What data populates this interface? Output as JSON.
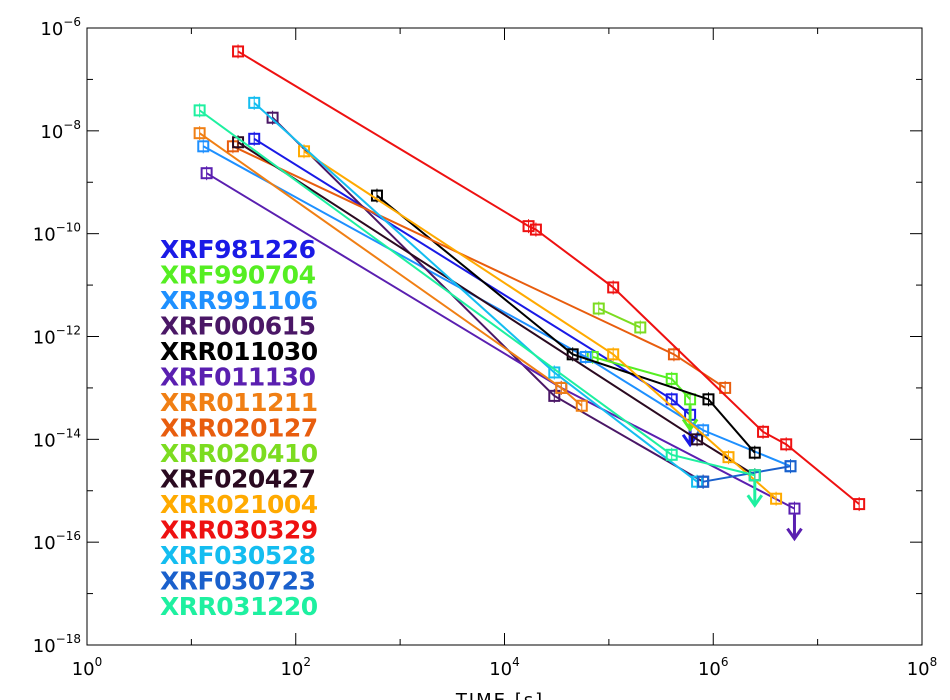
{
  "chart_data": {
    "type": "line",
    "xlabel": "TIME [s]",
    "ylabel": "",
    "x_scale": "log",
    "y_scale": "log",
    "xlim": [
      1,
      100000000
    ],
    "ylim": [
      1e-18,
      1e-06
    ],
    "x_ticks": [
      {
        "value": 1,
        "base": "10",
        "exp": "0"
      },
      {
        "value": 100,
        "base": "10",
        "exp": "2"
      },
      {
        "value": 10000,
        "base": "10",
        "exp": "4"
      },
      {
        "value": 1000000,
        "base": "10",
        "exp": "6"
      },
      {
        "value": 100000000,
        "base": "10",
        "exp": "8"
      }
    ],
    "y_ticks": [
      {
        "value": 1e-06,
        "base": "10",
        "exp": "−6"
      },
      {
        "value": 1e-08,
        "base": "10",
        "exp": "−8"
      },
      {
        "value": 1e-10,
        "base": "10",
        "exp": "−10"
      },
      {
        "value": 1e-12,
        "base": "10",
        "exp": "−12"
      },
      {
        "value": 1e-14,
        "base": "10",
        "exp": "−14"
      },
      {
        "value": 1e-16,
        "base": "10",
        "exp": "−16"
      },
      {
        "value": 1e-18,
        "base": "10",
        "exp": "−18"
      }
    ],
    "legend_position": "left",
    "series": [
      {
        "name": "XRF981226",
        "color": "#1a1ae6",
        "x": [
          40,
          400000,
          600000
        ],
        "y": [
          7e-09,
          6e-14,
          3e-14
        ],
        "upper_limit_last": true
      },
      {
        "name": "XRF990704",
        "color": "#55ee22",
        "x": [
          70000,
          400000,
          600000
        ],
        "y": [
          4e-13,
          1.5e-13,
          6e-14
        ],
        "upper_limit_last": true
      },
      {
        "name": "XRR991106",
        "color": "#1e90ff",
        "x": [
          13,
          60000,
          800000,
          5500000
        ],
        "y": [
          5e-09,
          4e-13,
          1.5e-14,
          3e-15
        ],
        "upper_limit_last": false
      },
      {
        "name": "XRF000615",
        "color": "#4a1766",
        "x": [
          60,
          30000,
          800000
        ],
        "y": [
          1.8e-08,
          7e-14,
          1.5e-15
        ],
        "upper_limit_last": false
      },
      {
        "name": "XRR011030",
        "color": "#000000",
        "x": [
          600,
          45000,
          900000,
          2500000
        ],
        "y": [
          5.5e-10,
          4.5e-13,
          6e-14,
          5.5e-15
        ],
        "upper_limit_last": false
      },
      {
        "name": "XRF011130",
        "color": "#5a1fb0",
        "x": [
          14,
          35000,
          6000000
        ],
        "y": [
          1.5e-09,
          1e-13,
          4.5e-16
        ],
        "upper_limit_last": true
      },
      {
        "name": "XRR011211",
        "color": "#f07f14",
        "x": [
          12,
          35000,
          55000
        ],
        "y": [
          9e-09,
          1e-13,
          4.5e-14
        ],
        "upper_limit_last": false
      },
      {
        "name": "XRR020127",
        "color": "#e85d0e",
        "x": [
          25,
          420000,
          1300000
        ],
        "y": [
          5e-09,
          4.5e-13,
          1e-13
        ],
        "upper_limit_last": false
      },
      {
        "name": "XRR020410",
        "color": "#7cdc20",
        "x": [
          80000,
          200000
        ],
        "y": [
          3.5e-12,
          1.5e-12
        ],
        "upper_limit_last": false
      },
      {
        "name": "XRF020427",
        "color": "#2a0a20",
        "x": [
          28,
          700000,
          2500000
        ],
        "y": [
          6e-09,
          1e-14,
          2e-15
        ],
        "upper_limit_last": false
      },
      {
        "name": "XRR021004",
        "color": "#ffaa00",
        "x": [
          120,
          110000,
          1400000,
          4000000
        ],
        "y": [
          4e-09,
          4.5e-13,
          4.5e-15,
          7e-16
        ],
        "upper_limit_last": false
      },
      {
        "name": "XRR030329",
        "color": "#ee1111",
        "x": [
          28,
          17000,
          20000,
          110000,
          3000000,
          5000000,
          25000000
        ],
        "y": [
          3.5e-07,
          1.4e-10,
          1.2e-10,
          9e-12,
          1.4e-14,
          8e-15,
          5.5e-16
        ],
        "upper_limit_last": false
      },
      {
        "name": "XRF030528",
        "color": "#14bdf0",
        "x": [
          40,
          30000,
          700000
        ],
        "y": [
          3.5e-08,
          2e-13,
          1.5e-15
        ],
        "upper_limit_last": false
      },
      {
        "name": "XRF030723",
        "color": "#1a60cc",
        "x": [
          800000,
          5500000
        ],
        "y": [
          1.5e-15,
          3e-15
        ],
        "upper_limit_last": false
      },
      {
        "name": "XRR031220",
        "color": "#1ef0a0",
        "x": [
          12,
          400000,
          2500000
        ],
        "y": [
          2.5e-08,
          5e-15,
          2e-15
        ],
        "upper_limit_last": true
      }
    ]
  }
}
